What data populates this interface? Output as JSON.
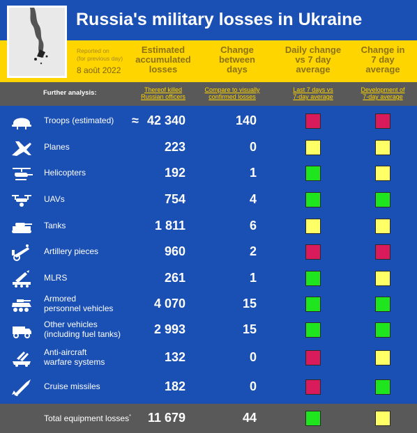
{
  "header": {
    "title": "Russia's military losses in Ukraine",
    "reported_line1": "Reported on",
    "reported_line2": "(for previous day)",
    "report_date": "8 août 2022"
  },
  "columns": {
    "estimated": [
      "Estimated",
      "accumulated",
      "losses"
    ],
    "change": [
      "Change",
      "between",
      "days"
    ],
    "daily": [
      "Daily change",
      "vs 7 day",
      "average"
    ],
    "seven": [
      "Change in",
      "7 day",
      "average"
    ]
  },
  "subheader": {
    "further": "Further analysis:",
    "officers": [
      "Thereof killed",
      "Russian officers"
    ],
    "compare": [
      "Compare to visually",
      "confirmed losses"
    ],
    "last7": [
      "Last 7 days vs",
      "7-day average"
    ],
    "development": [
      "Development of",
      "7-day average"
    ]
  },
  "colors": {
    "red": "#d91b5c",
    "yellow": "#ffff66",
    "green": "#1fe51f",
    "blue": "#1a4fb4",
    "header_yellow": "#ffd500",
    "gray": "#595959"
  },
  "chart_data": {
    "type": "table",
    "title": "Russia's military losses in Ukraine",
    "columns": [
      "Estimated accumulated losses",
      "Change between days",
      "Daily change vs 7 day average",
      "Change in 7 day average"
    ],
    "rows": [
      {
        "label": [
          "Troops (estimated)"
        ],
        "icon": "helmet-icon",
        "prefix": "≈",
        "estimated": "42 340",
        "change": "140",
        "daily": "red",
        "seven": "red"
      },
      {
        "label": [
          "Planes"
        ],
        "icon": "plane-icon",
        "estimated": "223",
        "change": "0",
        "daily": "yellow",
        "seven": "yellow"
      },
      {
        "label": [
          "Helicopters"
        ],
        "icon": "helicopter-icon",
        "estimated": "192",
        "change": "1",
        "daily": "green",
        "seven": "yellow"
      },
      {
        "label": [
          "UAVs"
        ],
        "icon": "drone-icon",
        "estimated": "754",
        "change": "4",
        "daily": "green",
        "seven": "green"
      },
      {
        "label": [
          "Tanks"
        ],
        "icon": "tank-icon",
        "estimated": "1 811",
        "change": "6",
        "daily": "yellow",
        "seven": "yellow"
      },
      {
        "label": [
          "Artillery pieces"
        ],
        "icon": "artillery-icon",
        "estimated": "960",
        "change": "2",
        "daily": "red",
        "seven": "red"
      },
      {
        "label": [
          "MLRS"
        ],
        "icon": "rocket-launcher-icon",
        "estimated": "261",
        "change": "1",
        "daily": "green",
        "seven": "yellow"
      },
      {
        "label": [
          "Armored",
          "personnel vehicles"
        ],
        "icon": "apc-icon",
        "estimated": "4 070",
        "change": "15",
        "daily": "green",
        "seven": "green"
      },
      {
        "label": [
          "Other vehicles",
          "(including fuel tanks)"
        ],
        "icon": "truck-icon",
        "estimated": "2 993",
        "change": "15",
        "daily": "green",
        "seven": "green"
      },
      {
        "label": [
          "Anti-aircraft",
          "warfare systems"
        ],
        "icon": "anti-aircraft-icon",
        "estimated": "132",
        "change": "0",
        "daily": "red",
        "seven": "yellow"
      },
      {
        "label": [
          "Cruise missiles"
        ],
        "icon": "missile-icon",
        "estimated": "182",
        "change": "0",
        "daily": "red",
        "seven": "green"
      }
    ],
    "total": {
      "label": "Total equipment losses",
      "marker": "*",
      "estimated": "11 679",
      "change": "44",
      "daily": "green",
      "seven": "yellow"
    }
  }
}
